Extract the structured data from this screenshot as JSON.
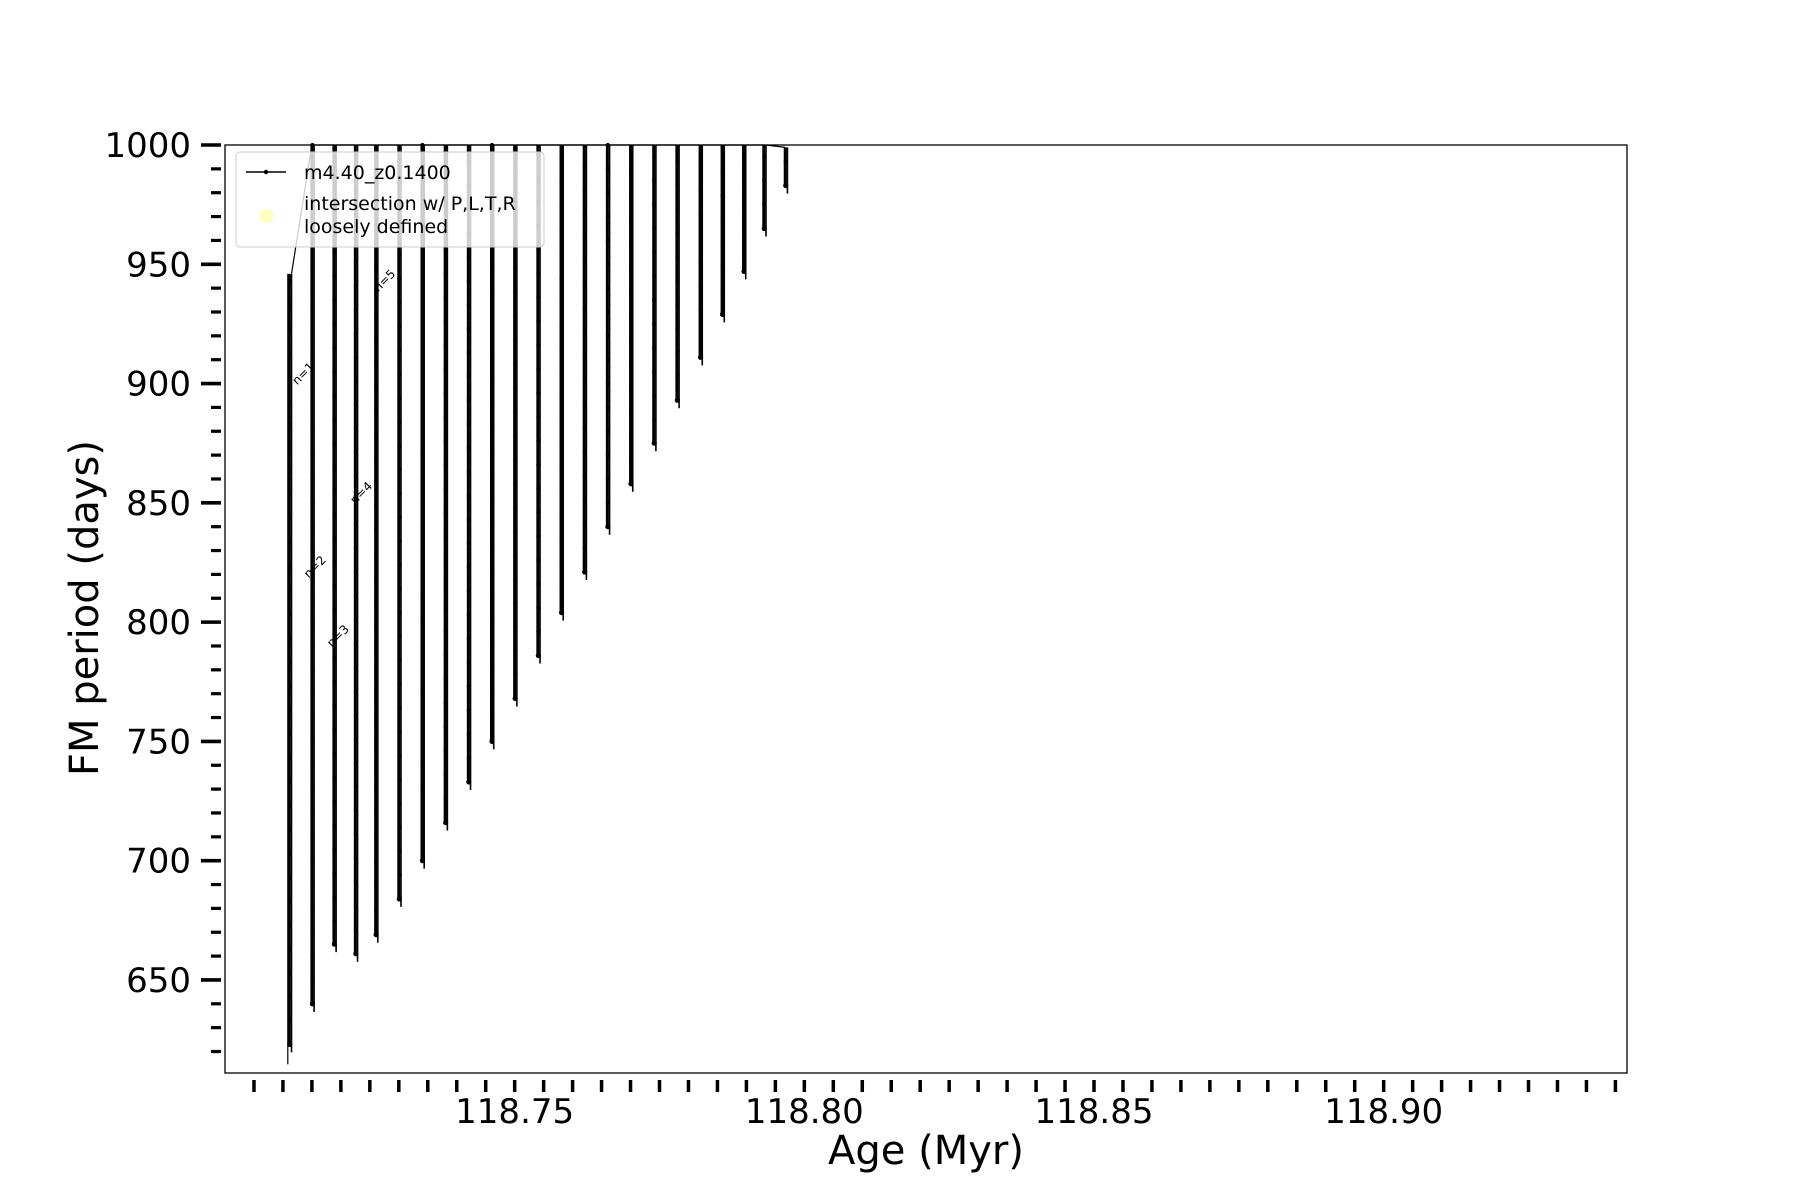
{
  "chart_data": {
    "type": "line",
    "title": "",
    "xlabel": "Age (Myr)",
    "ylabel": "FM period (days)",
    "xlim": [
      118.7,
      118.942
    ],
    "ylim": [
      611,
      1000
    ],
    "x_ticks": [
      118.75,
      118.8,
      118.85,
      118.9
    ],
    "x_tick_labels": [
      "118.75",
      "118.80",
      "118.85",
      "118.90"
    ],
    "x_minor_step": 0.005,
    "y_ticks": [
      650,
      700,
      750,
      800,
      850,
      900,
      950,
      1000
    ],
    "y_tick_labels": [
      "650",
      "700",
      "750",
      "800",
      "850",
      "900",
      "950",
      "1000"
    ],
    "y_minor_step": 10,
    "grid": false,
    "legend_position": "top-left",
    "legend": [
      {
        "label": "m4.40_z0.1400",
        "marker": "line-dot",
        "color": "#000000"
      },
      {
        "label": "intersection w/ P,L,T,R\nloosely defined",
        "marker": "circle",
        "color": "#ffffc0"
      }
    ],
    "series": [
      {
        "name": "m4.40_z0.1400",
        "color": "#000000",
        "vertical_segments": [
          {
            "x": 118.7111,
            "ymin": 623,
            "ymax": 946
          },
          {
            "x": 118.715,
            "ymin": 640,
            "ymax": 1000
          },
          {
            "x": 118.7188,
            "ymin": 665,
            "ymax": 1000
          },
          {
            "x": 118.7225,
            "ymin": 661,
            "ymax": 1000
          },
          {
            "x": 118.726,
            "ymin": 669,
            "ymax": 1000
          },
          {
            "x": 118.73,
            "ymin": 684,
            "ymax": 1000
          },
          {
            "x": 118.734,
            "ymin": 700,
            "ymax": 1000
          },
          {
            "x": 118.738,
            "ymin": 716,
            "ymax": 1000
          },
          {
            "x": 118.742,
            "ymin": 733,
            "ymax": 1000
          },
          {
            "x": 118.746,
            "ymin": 750,
            "ymax": 1000
          },
          {
            "x": 118.75,
            "ymin": 768,
            "ymax": 1000
          },
          {
            "x": 118.754,
            "ymin": 786,
            "ymax": 1000
          },
          {
            "x": 118.758,
            "ymin": 804,
            "ymax": 1000
          },
          {
            "x": 118.762,
            "ymin": 821,
            "ymax": 1000
          },
          {
            "x": 118.766,
            "ymin": 840,
            "ymax": 1000
          },
          {
            "x": 118.77,
            "ymin": 858,
            "ymax": 1000
          },
          {
            "x": 118.774,
            "ymin": 875,
            "ymax": 1000
          },
          {
            "x": 118.778,
            "ymin": 893,
            "ymax": 1000
          },
          {
            "x": 118.782,
            "ymin": 911,
            "ymax": 1000
          },
          {
            "x": 118.7858,
            "ymin": 929,
            "ymax": 1000
          },
          {
            "x": 118.7895,
            "ymin": 947,
            "ymax": 1000
          },
          {
            "x": 118.793,
            "ymin": 965,
            "ymax": 1000
          },
          {
            "x": 118.7967,
            "ymin": 983,
            "ymax": 999
          }
        ]
      }
    ],
    "annotations": [
      {
        "text": "n=1",
        "x": 118.714,
        "y": 903,
        "rotation": -45
      },
      {
        "text": "n=2",
        "x": 118.716,
        "y": 822,
        "rotation": -45
      },
      {
        "text": "n=3",
        "x": 118.72,
        "y": 793,
        "rotation": -45
      },
      {
        "text": "n=4",
        "x": 118.724,
        "y": 853,
        "rotation": -45
      },
      {
        "text": "n=5",
        "x": 118.728,
        "y": 942,
        "rotation": -45
      }
    ]
  }
}
